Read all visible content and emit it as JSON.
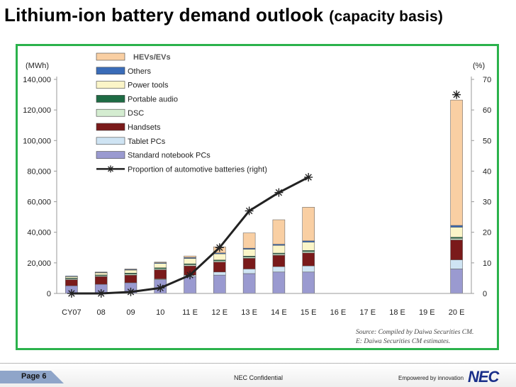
{
  "page": {
    "title": "Lithium-ion battery demand outlook",
    "subtitle": "(capacity basis)",
    "page_label": "Page 6",
    "confidential": "NEC Confidential",
    "tagline": "Empowered by innovation",
    "brand": "NEC",
    "source_line1": "Source: Compiled by Daiwa Securities CM.",
    "source_line2": "E: Daiwa Securities CM estimates."
  },
  "chart_data": {
    "type": "bar",
    "stacked": true,
    "categories": [
      "CY07",
      "08",
      "09",
      "10",
      "11 E",
      "12 E",
      "13 E",
      "14 E",
      "15 E",
      "16 E",
      "17 E",
      "18 E",
      "19 E",
      "20 E"
    ],
    "ylabel": "(MWh)",
    "y2label": "(%)",
    "ylim": [
      0,
      140000
    ],
    "y2lim": [
      0,
      70
    ],
    "yticks": [
      0,
      20000,
      40000,
      60000,
      80000,
      100000,
      120000,
      140000
    ],
    "ytick_labels": [
      "0",
      "20,000",
      "40,000",
      "60,000",
      "80,000",
      "100,000",
      "120,000",
      "140,000"
    ],
    "y2ticks": [
      0,
      10,
      20,
      30,
      40,
      50,
      60,
      70
    ],
    "series": [
      {
        "name": "Standard notebook PCs",
        "color": "#9a9ad0",
        "values": [
          5000,
          6000,
          7000,
          9000,
          11000,
          12000,
          13000,
          14000,
          14000,
          null,
          null,
          null,
          null,
          16000
        ]
      },
      {
        "name": "Tablet PCs",
        "color": "#cfe4f3",
        "values": [
          0,
          0,
          0,
          500,
          1000,
          2000,
          3000,
          3500,
          4000,
          null,
          null,
          null,
          null,
          6000
        ]
      },
      {
        "name": "Handsets",
        "color": "#7a1a1a",
        "values": [
          4000,
          5000,
          5000,
          6000,
          6000,
          6500,
          7000,
          7500,
          8500,
          null,
          null,
          null,
          null,
          13000
        ]
      },
      {
        "name": "DSC",
        "color": "#d4ecd0",
        "values": [
          600,
          600,
          700,
          700,
          800,
          800,
          800,
          800,
          900,
          null,
          null,
          null,
          null,
          1000
        ]
      },
      {
        "name": "Portable audio",
        "color": "#1e6b44",
        "values": [
          500,
          500,
          600,
          600,
          600,
          600,
          600,
          600,
          700,
          null,
          null,
          null,
          null,
          800
        ]
      },
      {
        "name": "Power tools",
        "color": "#fbf5c8",
        "values": [
          900,
          1400,
          2000,
          2800,
          3500,
          4000,
          4500,
          5000,
          5400,
          null,
          null,
          null,
          null,
          6500
        ]
      },
      {
        "name": "Others",
        "color": "#3a6cb8",
        "values": [
          400,
          400,
          400,
          500,
          600,
          600,
          700,
          800,
          900,
          null,
          null,
          null,
          null,
          1200
        ]
      },
      {
        "name": "HEVs/EVs",
        "color": "#f9cfa3",
        "values": [
          0,
          100,
          300,
          400,
          1000,
          4000,
          10000,
          16000,
          22000,
          null,
          null,
          null,
          null,
          82000
        ]
      }
    ],
    "line": {
      "name": "Proportion of automotive batteries (right)",
      "axis": "right",
      "values": [
        0,
        0,
        0.5,
        1.8,
        6,
        15,
        27,
        33,
        38,
        null,
        null,
        null,
        null,
        65
      ]
    },
    "legend": [
      "HEVs/EVs",
      "Others",
      "Power tools",
      "Portable audio",
      "DSC",
      "Handsets",
      "Tablet PCs",
      "Standard notebook PCs",
      "Proportion of automotive batteries (right)"
    ],
    "legend_position": "top-left"
  }
}
